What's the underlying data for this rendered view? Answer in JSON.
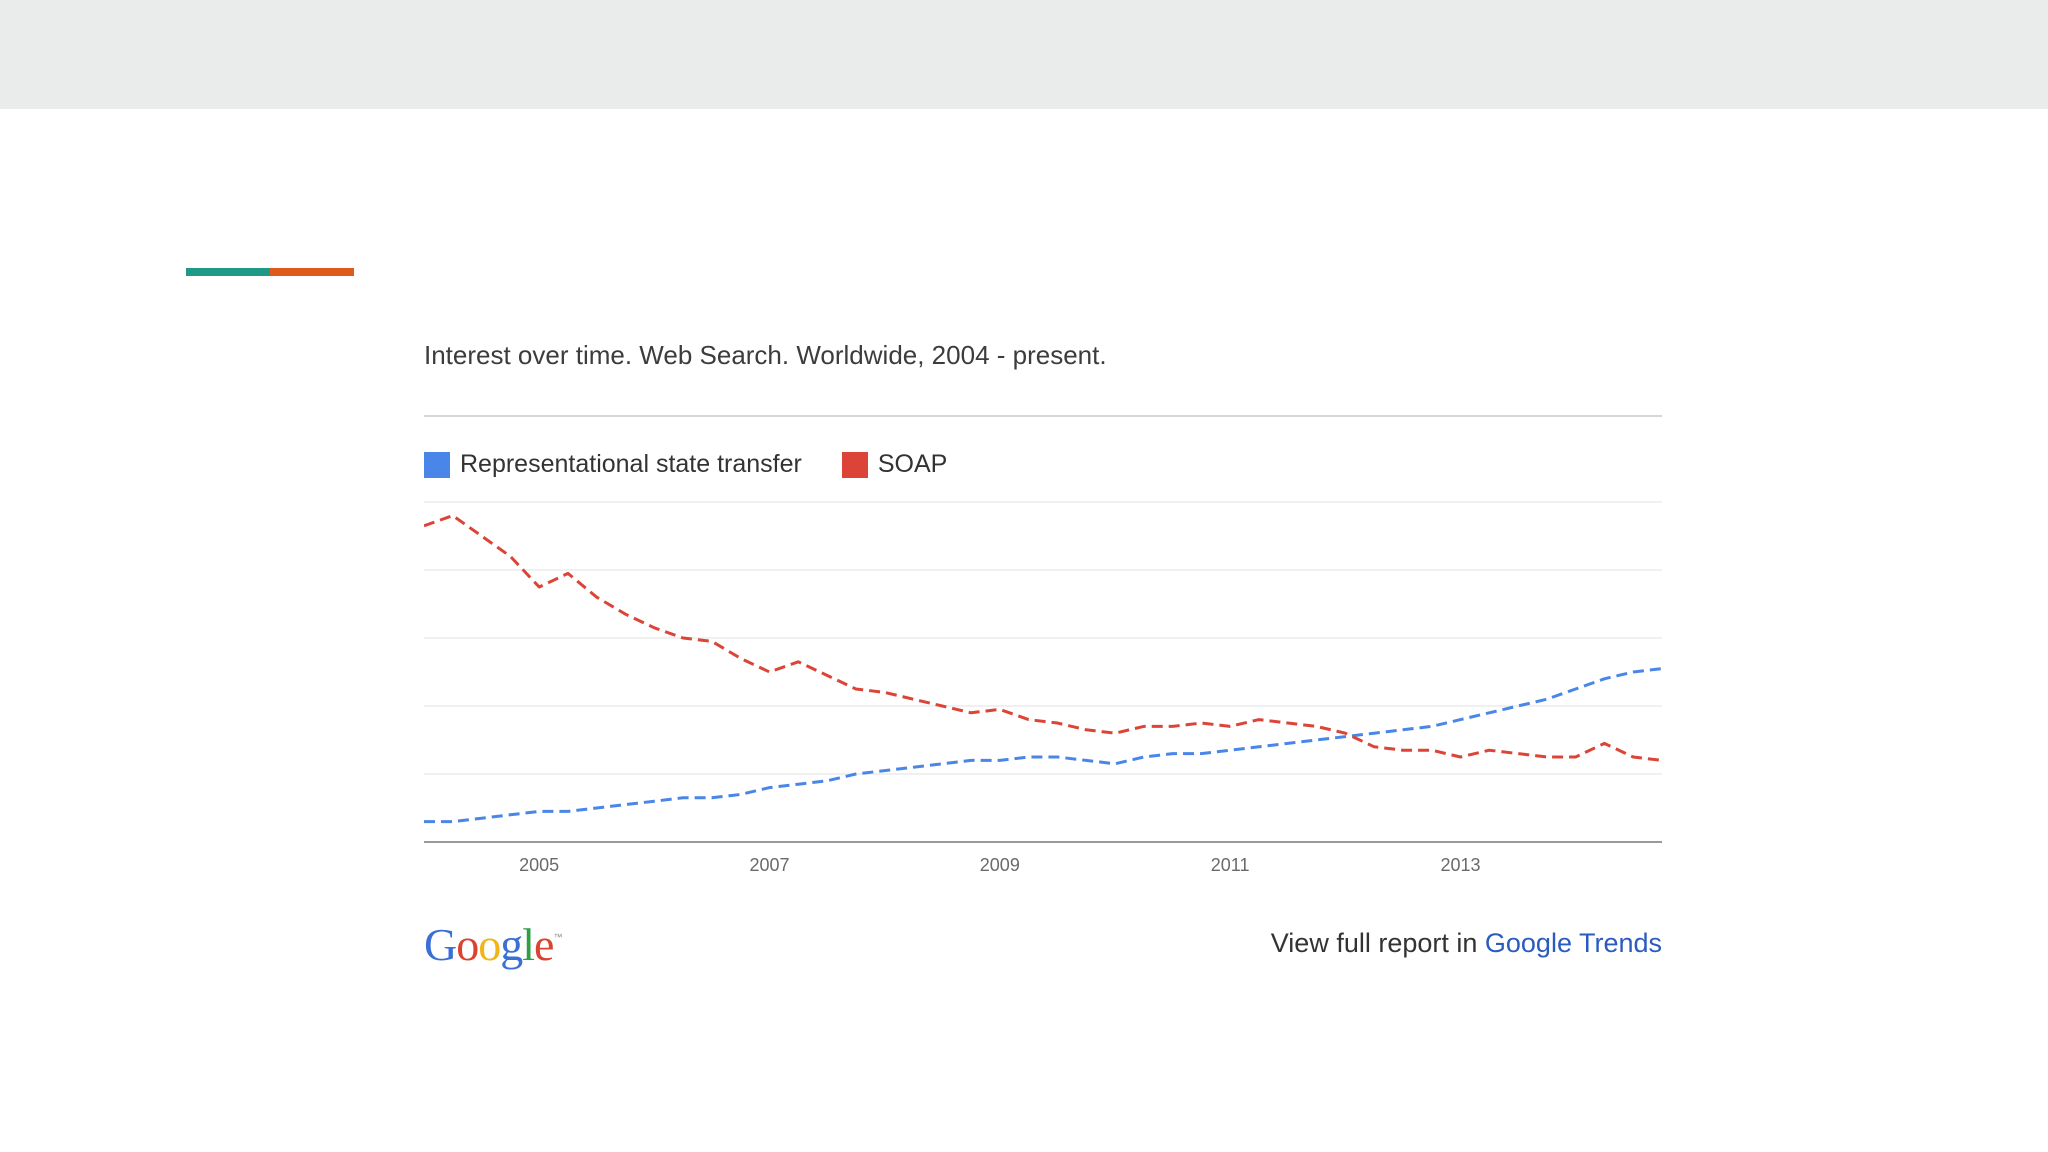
{
  "colors": {
    "band": "#e9eceb",
    "accent_teal": "#1f9a89",
    "accent_orange": "#e05a1c",
    "rest": "#4a86e8",
    "soap": "#db4437",
    "link": "#2a5bbf"
  },
  "footer": {
    "logo_text": "Google",
    "logo_tm": "™",
    "report_prefix": "View full report in ",
    "report_link": "Google Trends"
  },
  "chart_data": {
    "type": "line",
    "subtitle": "Interest over time. Web Search. Worldwide, 2004 - present.",
    "title": "",
    "xlabel": "",
    "ylabel": "",
    "x_tick_labels": [
      "2005",
      "2007",
      "2009",
      "2011",
      "2013"
    ],
    "x_range": [
      2004.0,
      2014.75
    ],
    "ylim": [
      0,
      100
    ],
    "grid": true,
    "legend_position": "top-left",
    "series": [
      {
        "name": "Representational state transfer",
        "color": "#4a86e8",
        "x": [
          2004.0,
          2004.25,
          2004.5,
          2004.75,
          2005.0,
          2005.25,
          2005.5,
          2005.75,
          2006.0,
          2006.25,
          2006.5,
          2006.75,
          2007.0,
          2007.25,
          2007.5,
          2007.75,
          2008.0,
          2008.25,
          2008.5,
          2008.75,
          2009.0,
          2009.25,
          2009.5,
          2009.75,
          2010.0,
          2010.25,
          2010.5,
          2010.75,
          2011.0,
          2011.25,
          2011.5,
          2011.75,
          2012.0,
          2012.25,
          2012.5,
          2012.75,
          2013.0,
          2013.25,
          2013.5,
          2013.75,
          2014.0,
          2014.25,
          2014.5,
          2014.75
        ],
        "y": [
          6,
          6,
          7,
          8,
          9,
          9,
          10,
          11,
          12,
          13,
          13,
          14,
          16,
          17,
          18,
          20,
          21,
          22,
          23,
          24,
          24,
          25,
          25,
          24,
          23,
          25,
          26,
          26,
          27,
          28,
          29,
          30,
          31,
          32,
          33,
          34,
          36,
          38,
          40,
          42,
          45,
          48,
          50,
          51
        ]
      },
      {
        "name": "SOAP",
        "color": "#db4437",
        "x": [
          2004.0,
          2004.25,
          2004.5,
          2004.75,
          2005.0,
          2005.25,
          2005.5,
          2005.75,
          2006.0,
          2006.25,
          2006.5,
          2006.75,
          2007.0,
          2007.25,
          2007.5,
          2007.75,
          2008.0,
          2008.25,
          2008.5,
          2008.75,
          2009.0,
          2009.25,
          2009.5,
          2009.75,
          2010.0,
          2010.25,
          2010.5,
          2010.75,
          2011.0,
          2011.25,
          2011.5,
          2011.75,
          2012.0,
          2012.25,
          2012.5,
          2012.75,
          2013.0,
          2013.25,
          2013.5,
          2013.75,
          2014.0,
          2014.25,
          2014.5,
          2014.75
        ],
        "y": [
          93,
          96,
          90,
          84,
          75,
          79,
          72,
          67,
          63,
          60,
          59,
          54,
          50,
          53,
          49,
          45,
          44,
          42,
          40,
          38,
          39,
          36,
          35,
          33,
          32,
          34,
          34,
          35,
          34,
          36,
          35,
          34,
          32,
          28,
          27,
          27,
          25,
          27,
          26,
          25,
          25,
          29,
          25,
          24
        ]
      }
    ]
  }
}
